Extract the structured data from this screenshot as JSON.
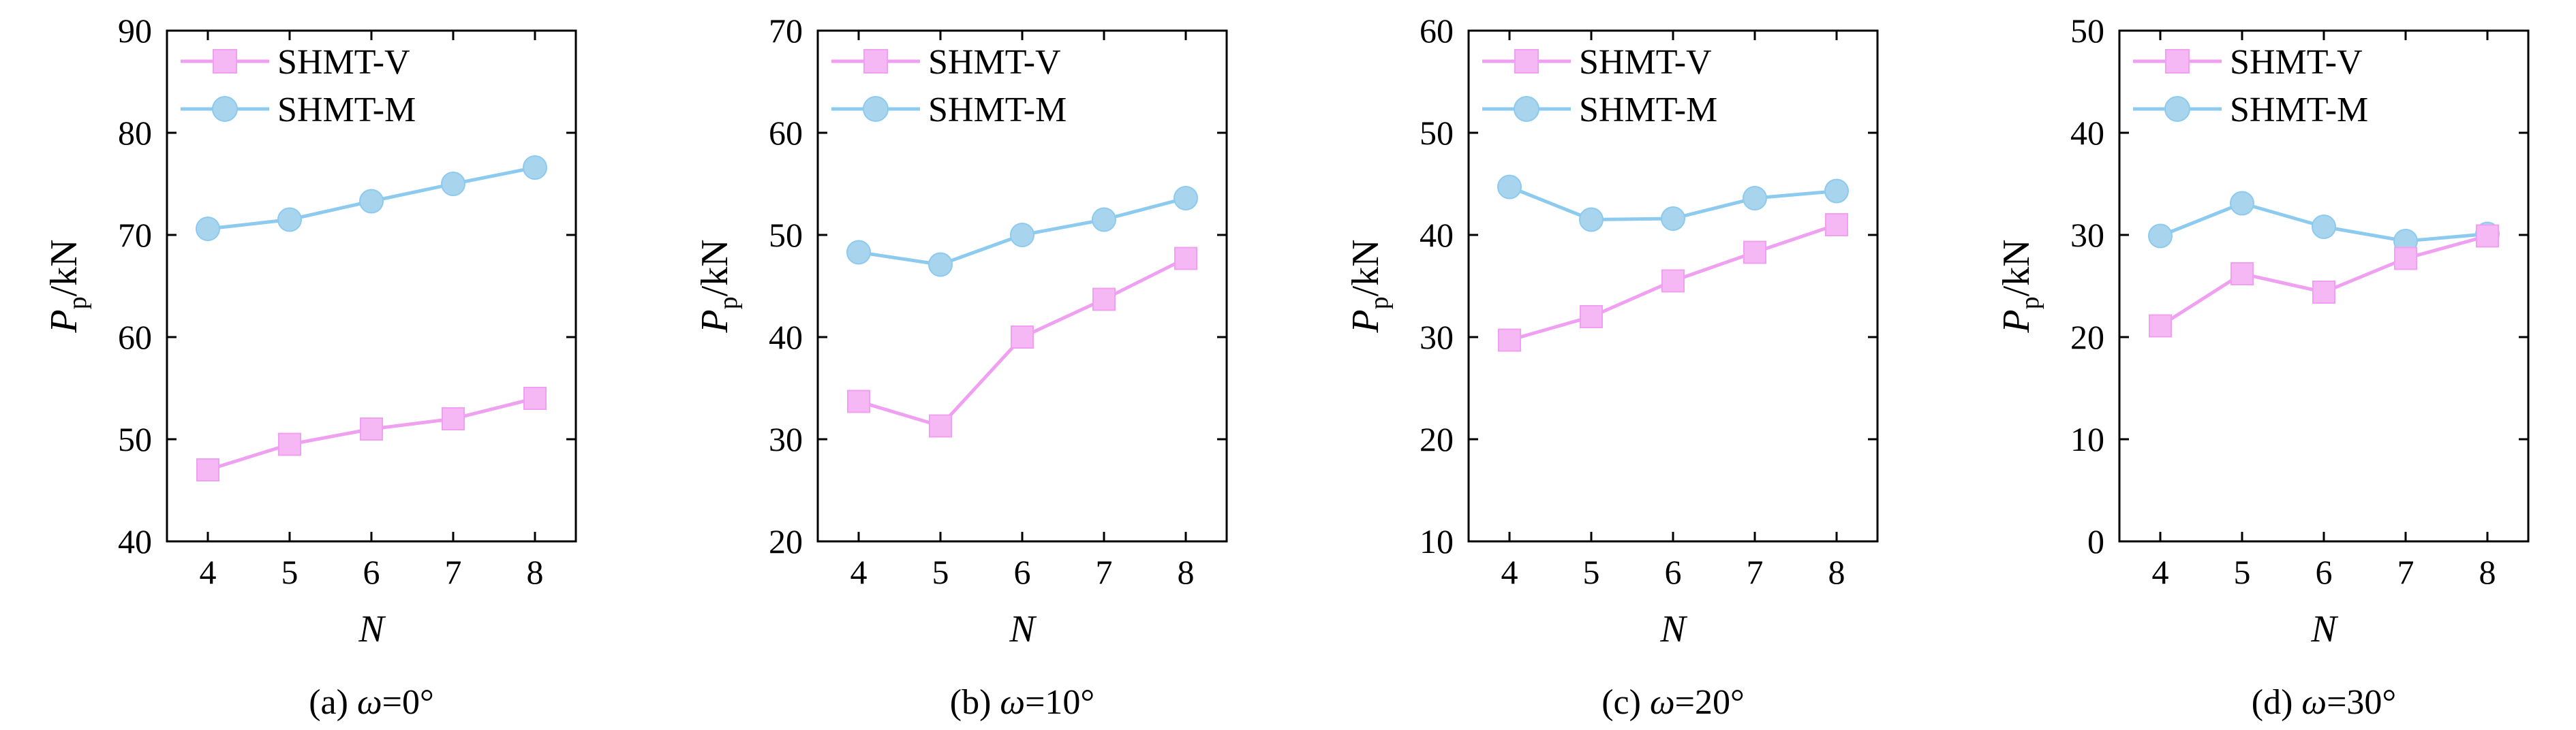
{
  "colors": {
    "shmt_v": "#f0a0f0",
    "shmt_v_marker": "#f5b8f5",
    "shmt_m": "#8ccbef",
    "shmt_m_marker": "#a8d4ee",
    "axes": "#000000"
  },
  "chart_data": [
    {
      "type": "line",
      "caption_prefix": "(a) ",
      "caption_symbol": "ω",
      "caption_suffix": "=0°",
      "xlabel": "N",
      "ylabel_main": "P",
      "ylabel_sub": "p",
      "ylabel_unit": "/kN",
      "x": [
        4,
        5,
        6,
        7,
        8
      ],
      "xlim": [
        3.5,
        8.5
      ],
      "ylim": [
        40,
        90
      ],
      "yticks": [
        40,
        50,
        60,
        70,
        80,
        90
      ],
      "legend_position": "top-left",
      "series": [
        {
          "name": "SHMT-V",
          "marker": "square",
          "values": [
            47.0,
            49.5,
            51.0,
            52.0,
            54.0
          ]
        },
        {
          "name": "SHMT-M",
          "marker": "circle",
          "values": [
            70.6,
            71.5,
            73.3,
            75.0,
            76.6
          ]
        }
      ]
    },
    {
      "type": "line",
      "caption_prefix": "(b) ",
      "caption_symbol": "ω",
      "caption_suffix": "=10°",
      "xlabel": "N",
      "ylabel_main": "P",
      "ylabel_sub": "p",
      "ylabel_unit": "/kN",
      "x": [
        4,
        5,
        6,
        7,
        8
      ],
      "xlim": [
        3.5,
        8.5
      ],
      "ylim": [
        20,
        70
      ],
      "yticks": [
        20,
        30,
        40,
        50,
        60,
        70
      ],
      "legend_position": "top-left",
      "series": [
        {
          "name": "SHMT-V",
          "marker": "square",
          "values": [
            33.7,
            31.3,
            40.0,
            43.7,
            47.7
          ]
        },
        {
          "name": "SHMT-M",
          "marker": "circle",
          "values": [
            48.3,
            47.1,
            50.0,
            51.5,
            53.6
          ]
        }
      ]
    },
    {
      "type": "line",
      "caption_prefix": "(c) ",
      "caption_symbol": "ω",
      "caption_suffix": "=20°",
      "xlabel": "N",
      "ylabel_main": "P",
      "ylabel_sub": "p",
      "ylabel_unit": "/kN",
      "x": [
        4,
        5,
        6,
        7,
        8
      ],
      "xlim": [
        3.5,
        8.5
      ],
      "ylim": [
        10,
        60
      ],
      "yticks": [
        10,
        20,
        30,
        40,
        50,
        60
      ],
      "legend_position": "top-left",
      "series": [
        {
          "name": "SHMT-V",
          "marker": "square",
          "values": [
            29.7,
            32.0,
            35.5,
            38.3,
            41.0
          ]
        },
        {
          "name": "SHMT-M",
          "marker": "circle",
          "values": [
            44.7,
            41.5,
            41.6,
            43.6,
            44.3
          ]
        }
      ]
    },
    {
      "type": "line",
      "caption_prefix": "(d) ",
      "caption_symbol": "ω",
      "caption_suffix": "=30°",
      "xlabel": "N",
      "ylabel_main": "P",
      "ylabel_sub": "p",
      "ylabel_unit": "/kN",
      "x": [
        4,
        5,
        6,
        7,
        8
      ],
      "xlim": [
        3.5,
        8.5
      ],
      "ylim": [
        0,
        50
      ],
      "yticks": [
        0,
        10,
        20,
        30,
        40,
        50
      ],
      "legend_position": "top-left",
      "series": [
        {
          "name": "SHMT-V",
          "marker": "square",
          "values": [
            21.1,
            26.2,
            24.4,
            27.7,
            29.9
          ]
        },
        {
          "name": "SHMT-M",
          "marker": "circle",
          "values": [
            29.9,
            33.1,
            30.8,
            29.4,
            30.1
          ]
        }
      ]
    }
  ]
}
